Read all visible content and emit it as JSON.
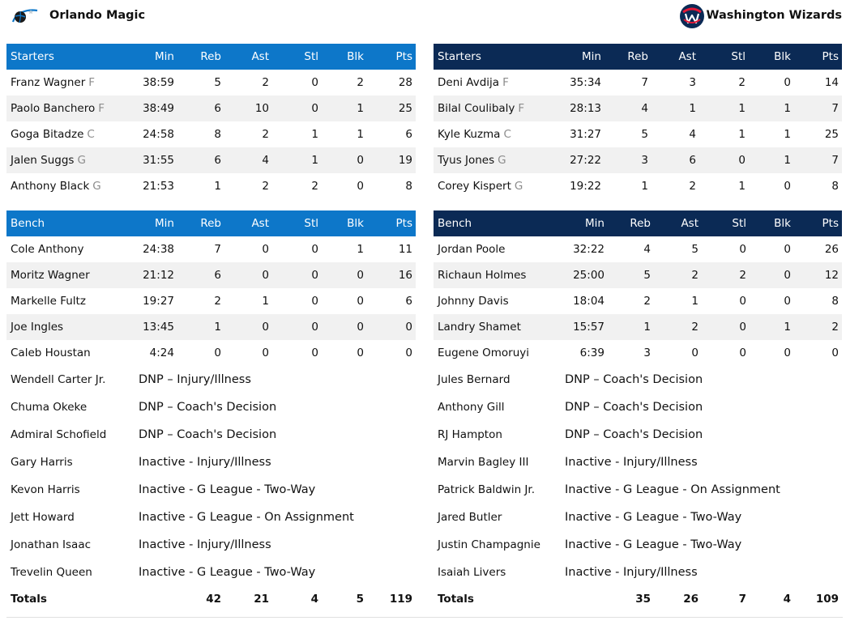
{
  "columns": [
    "Min",
    "Reb",
    "Ast",
    "Stl",
    "Blk",
    "Pts"
  ],
  "teams": [
    {
      "name": "Orlando Magic",
      "logo_icon": "orlando-magic-logo",
      "accent": "#0d77c9",
      "starters_label": "Starters",
      "bench_label": "Bench",
      "starters": [
        {
          "name": "Franz Wagner",
          "pos": "F",
          "stats": [
            "38:59",
            "5",
            "2",
            "0",
            "2",
            "28"
          ]
        },
        {
          "name": "Paolo Banchero",
          "pos": "F",
          "stats": [
            "38:49",
            "6",
            "10",
            "0",
            "1",
            "25"
          ]
        },
        {
          "name": "Goga Bitadze",
          "pos": "C",
          "stats": [
            "24:58",
            "8",
            "2",
            "1",
            "1",
            "6"
          ]
        },
        {
          "name": "Jalen Suggs",
          "pos": "G",
          "stats": [
            "31:55",
            "6",
            "4",
            "1",
            "0",
            "19"
          ]
        },
        {
          "name": "Anthony Black",
          "pos": "G",
          "stats": [
            "21:53",
            "1",
            "2",
            "2",
            "0",
            "8"
          ]
        }
      ],
      "bench": [
        {
          "name": "Cole Anthony",
          "stats": [
            "24:38",
            "7",
            "0",
            "0",
            "1",
            "11"
          ]
        },
        {
          "name": "Moritz Wagner",
          "stats": [
            "21:12",
            "6",
            "0",
            "0",
            "0",
            "16"
          ]
        },
        {
          "name": "Markelle Fultz",
          "stats": [
            "19:27",
            "2",
            "1",
            "0",
            "0",
            "6"
          ]
        },
        {
          "name": "Joe Ingles",
          "stats": [
            "13:45",
            "1",
            "0",
            "0",
            "0",
            "0"
          ]
        },
        {
          "name": "Caleb Houstan",
          "stats": [
            "4:24",
            "0",
            "0",
            "0",
            "0",
            "0"
          ]
        }
      ],
      "inactive": [
        {
          "name": "Wendell Carter Jr.",
          "status": "DNP – Injury/Illness"
        },
        {
          "name": "Chuma Okeke",
          "status": "DNP – Coach's Decision"
        },
        {
          "name": "Admiral Schofield",
          "status": "DNP – Coach's Decision"
        },
        {
          "name": "Gary Harris",
          "status": "Inactive - Injury/Illness"
        },
        {
          "name": "Kevon Harris",
          "status": "Inactive - G League - Two-Way"
        },
        {
          "name": "Jett Howard",
          "status": "Inactive - G League - On Assignment"
        },
        {
          "name": "Jonathan Isaac",
          "status": "Inactive - Injury/Illness"
        },
        {
          "name": "Trevelin Queen",
          "status": "Inactive - G League - Two-Way"
        }
      ],
      "totals": {
        "label": "Totals",
        "values": [
          "",
          "42",
          "21",
          "4",
          "5",
          "119"
        ]
      }
    },
    {
      "name": "Washington Wizards",
      "logo_icon": "washington-wizards-logo",
      "accent": "#0b2a55",
      "starters_label": "Starters",
      "bench_label": "Bench",
      "starters": [
        {
          "name": "Deni Avdija",
          "pos": "F",
          "stats": [
            "35:34",
            "7",
            "3",
            "2",
            "0",
            "14"
          ]
        },
        {
          "name": "Bilal Coulibaly",
          "pos": "F",
          "stats": [
            "28:13",
            "4",
            "1",
            "1",
            "1",
            "7"
          ]
        },
        {
          "name": "Kyle Kuzma",
          "pos": "C",
          "stats": [
            "31:27",
            "5",
            "4",
            "1",
            "1",
            "25"
          ]
        },
        {
          "name": "Tyus Jones",
          "pos": "G",
          "stats": [
            "27:22",
            "3",
            "6",
            "0",
            "1",
            "7"
          ]
        },
        {
          "name": "Corey Kispert",
          "pos": "G",
          "stats": [
            "19:22",
            "1",
            "2",
            "1",
            "0",
            "8"
          ]
        }
      ],
      "bench": [
        {
          "name": "Jordan Poole",
          "stats": [
            "32:22",
            "4",
            "5",
            "0",
            "0",
            "26"
          ]
        },
        {
          "name": "Richaun Holmes",
          "stats": [
            "25:00",
            "5",
            "2",
            "2",
            "0",
            "12"
          ]
        },
        {
          "name": "Johnny Davis",
          "stats": [
            "18:04",
            "2",
            "1",
            "0",
            "0",
            "8"
          ]
        },
        {
          "name": "Landry Shamet",
          "stats": [
            "15:57",
            "1",
            "2",
            "0",
            "1",
            "2"
          ]
        },
        {
          "name": "Eugene Omoruyi",
          "stats": [
            "6:39",
            "3",
            "0",
            "0",
            "0",
            "0"
          ]
        }
      ],
      "inactive": [
        {
          "name": "Jules Bernard",
          "status": "DNP – Coach's Decision"
        },
        {
          "name": "Anthony Gill",
          "status": "DNP – Coach's Decision"
        },
        {
          "name": "RJ Hampton",
          "status": "DNP – Coach's Decision"
        },
        {
          "name": "Marvin Bagley III",
          "status": "Inactive - Injury/Illness"
        },
        {
          "name": "Patrick Baldwin Jr.",
          "status": "Inactive - G League - On Assignment"
        },
        {
          "name": "Jared Butler",
          "status": "Inactive - G League - Two-Way"
        },
        {
          "name": "Justin Champagnie",
          "status": "Inactive - G League - Two-Way"
        },
        {
          "name": "Isaiah Livers",
          "status": "Inactive - Injury/Illness"
        }
      ],
      "totals": {
        "label": "Totals",
        "values": [
          "",
          "35",
          "26",
          "7",
          "4",
          "109"
        ]
      }
    }
  ]
}
